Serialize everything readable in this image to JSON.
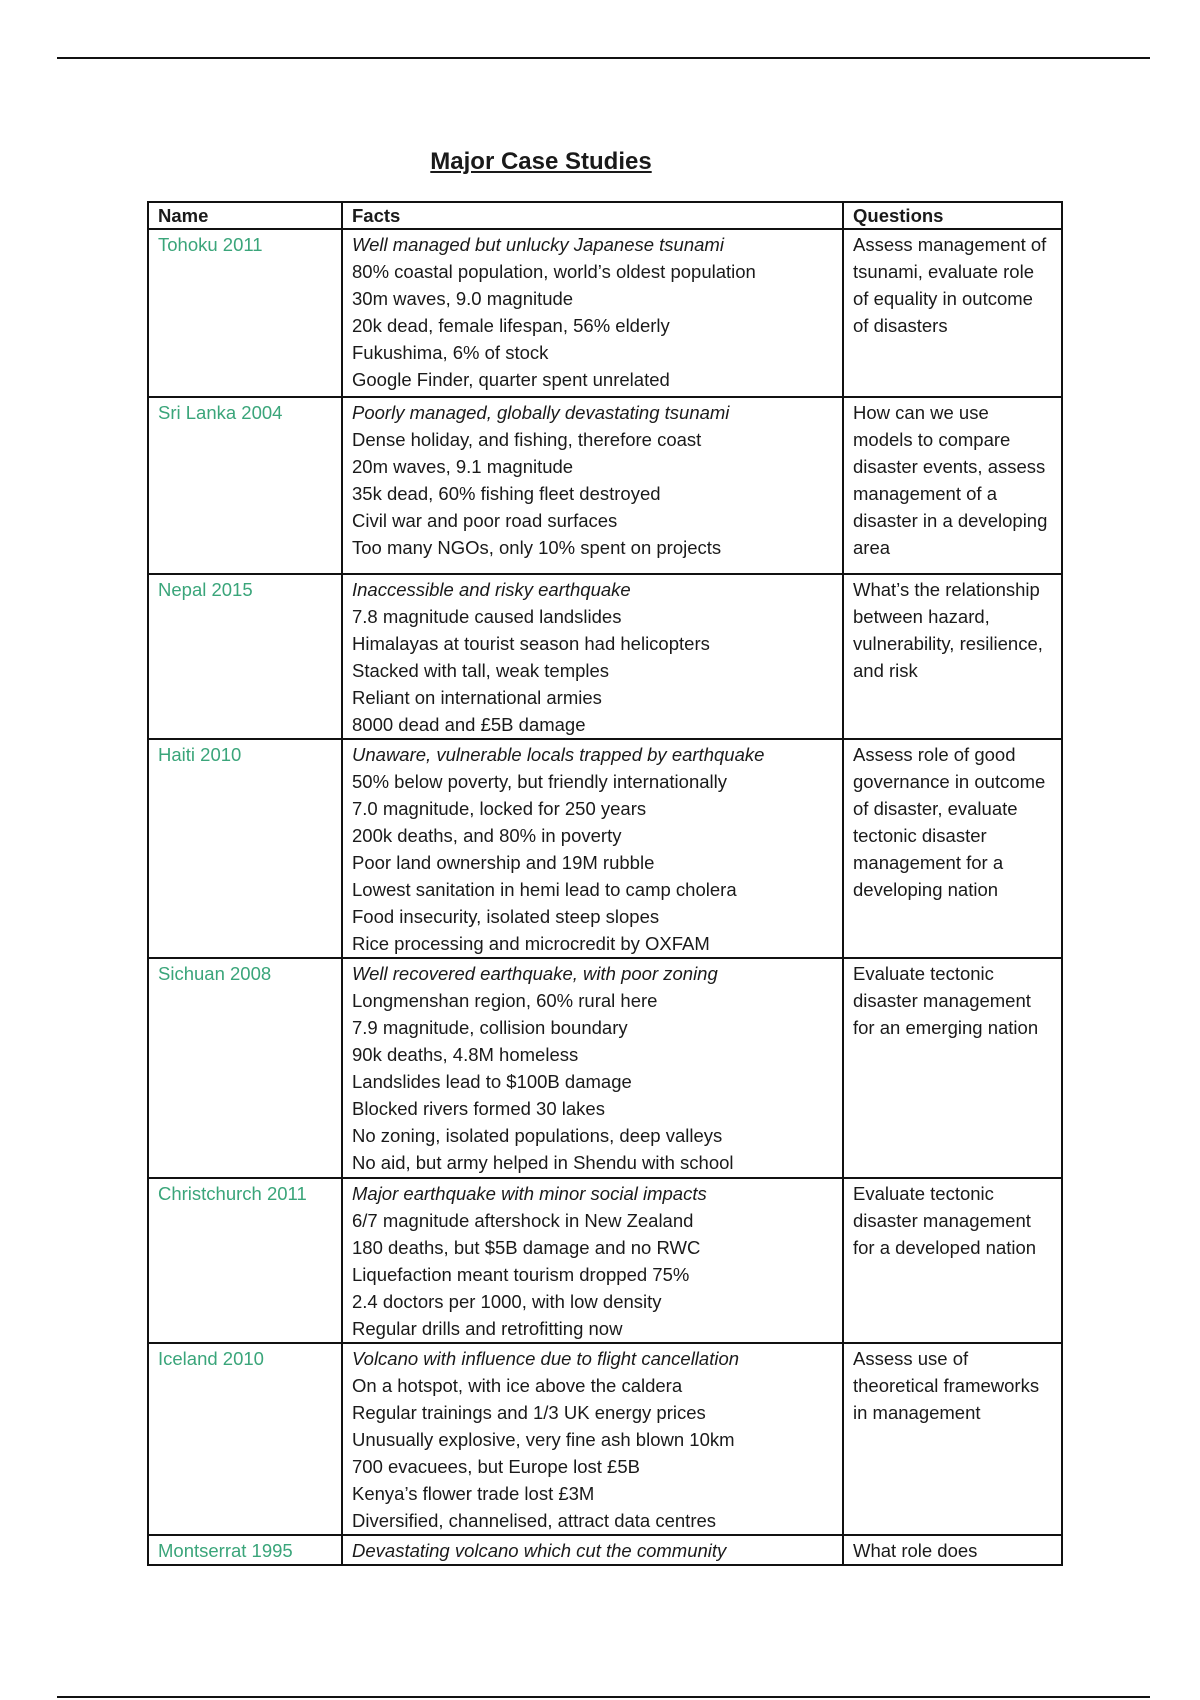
{
  "title": "Major Case Studies",
  "headers": [
    "Name",
    "Facts",
    "Questions"
  ],
  "accent_color": "#3aa57a",
  "rows": [
    {
      "name": "Tohoku 2011",
      "facts": [
        "Well managed but unlucky Japanese tsunami",
        "80% coastal population, world’s oldest population",
        "30m waves, 9.0 magnitude",
        "20k dead, female lifespan, 56% elderly",
        "Fukushima, 6% of stock",
        "Google Finder, quarter spent unrelated"
      ],
      "question": "Assess management of tsunami, evaluate role of equality in outcome of disasters"
    },
    {
      "name": "Sri Lanka 2004",
      "facts": [
        "Poorly managed, globally devastating tsunami",
        "Dense holiday, and fishing, therefore coast",
        "20m waves, 9.1 magnitude",
        "35k dead, 60% fishing fleet destroyed",
        "Civil war and poor road surfaces",
        "Too many NGOs, only 10% spent on projects"
      ],
      "question": "How can we use models to compare disaster events, assess management of a disaster in a developing area"
    },
    {
      "name": "Nepal 2015",
      "facts": [
        "Inaccessible and risky earthquake",
        "7.8 magnitude caused landslides",
        "Himalayas at tourist season had helicopters",
        "Stacked with tall, weak temples",
        "Reliant on international armies",
        "8000 dead and £5B damage"
      ],
      "question": "What’s the relationship between hazard, vulnerability, resilience, and risk"
    },
    {
      "name": "Haiti 2010",
      "facts": [
        "Unaware, vulnerable locals trapped by earthquake",
        "50% below poverty, but friendly internationally",
        "7.0 magnitude, locked for 250 years",
        "200k deaths, and 80% in poverty",
        "Poor land ownership and 19M rubble",
        "Lowest sanitation in hemi lead to camp cholera",
        "Food insecurity, isolated steep slopes",
        "Rice processing and microcredit by OXFAM"
      ],
      "question": "Assess role of good governance in outcome of disaster, evaluate tectonic disaster management for a developing nation"
    },
    {
      "name": "Sichuan 2008",
      "facts": [
        "Well recovered earthquake, with poor zoning",
        "Longmenshan region, 60% rural here",
        "7.9 magnitude, collision boundary",
        "90k deaths, 4.8M homeless",
        "Landslides lead to $100B damage",
        "Blocked rivers formed 30 lakes",
        "No zoning, isolated populations, deep valleys",
        "No aid, but army helped in Shendu with school"
      ],
      "question": "Evaluate tectonic disaster management for an emerging nation"
    },
    {
      "name": "Christchurch 2011",
      "facts": [
        "Major earthquake with minor social impacts",
        "6/7 magnitude aftershock in New Zealand",
        "180 deaths, but $5B damage and no RWC",
        "Liquefaction meant tourism dropped 75%",
        "2.4 doctors per 1000, with low density",
        "Regular drills and retrofitting now"
      ],
      "question": "Evaluate tectonic disaster management for a developed nation"
    },
    {
      "name": "Iceland 2010",
      "facts": [
        "Volcano with influence due to flight cancellation",
        "On a hotspot, with ice above the caldera",
        "Regular trainings and 1/3 UK energy prices",
        "Unusually explosive, very fine ash blown 10km",
        "700 evacuees, but Europe lost £5B",
        "Kenya’s flower trade lost £3M",
        "Diversified, channelised, attract data centres"
      ],
      "question": "Assess use of theoretical frameworks in management"
    },
    {
      "name": "Montserrat 1995",
      "facts": [
        "Devastating volcano which cut the community"
      ],
      "question": "What role does"
    }
  ]
}
